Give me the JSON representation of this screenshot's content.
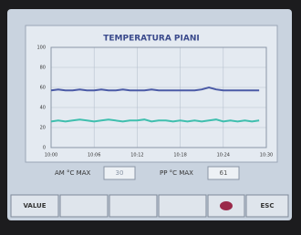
{
  "chart_data": {
    "type": "line",
    "title": "TEMPERATURA PIANI",
    "categories": [
      "10:00",
      null,
      null,
      null,
      null,
      null,
      "10:06",
      null,
      null,
      null,
      null,
      null,
      "10:12",
      null,
      null,
      null,
      null,
      null,
      "10:18",
      null,
      null,
      null,
      null,
      null,
      "10:24",
      null,
      null,
      null,
      null,
      null,
      "10:30"
    ],
    "series": [
      {
        "color": "#4a5aa6",
        "values": [
          57,
          58,
          57,
          57,
          58,
          57,
          57,
          58,
          57,
          57,
          58,
          57,
          57,
          57,
          58,
          57,
          57,
          57,
          57,
          57,
          57,
          58,
          60,
          58,
          57,
          57,
          57,
          57,
          57,
          57,
          null
        ]
      },
      {
        "color": "#3fbfae",
        "values": [
          26,
          27,
          26,
          27,
          28,
          27,
          26,
          27,
          28,
          27,
          26,
          27,
          27,
          28,
          26,
          27,
          27,
          26,
          27,
          26,
          27,
          26,
          27,
          28,
          26,
          27,
          26,
          27,
          26,
          27,
          null
        ]
      }
    ],
    "ylim": [
      0,
      100
    ],
    "yticks": [
      0,
      20,
      40,
      60,
      80,
      100
    ],
    "grid": true
  },
  "fields": [
    {
      "label": "AM °C MAX",
      "value": "30"
    },
    {
      "label": "PP °C MAX",
      "value": "61"
    }
  ],
  "buttons": {
    "left": "VALUE",
    "right": "ESC"
  }
}
